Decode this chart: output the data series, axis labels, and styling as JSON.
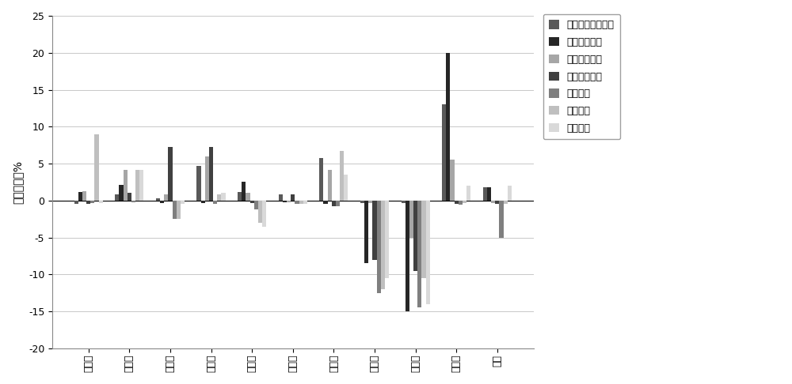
{
  "categories": [
    "玉州区",
    "福绵区",
    "兴业县",
    "北流市",
    "陆川县",
    "博白县",
    "合浦县",
    "浦北县",
    "灵山县",
    "钔南区",
    "流域"
  ],
  "series": [
    {
      "name": "城镇居民生活用水",
      "color": "#595959",
      "values": [
        -0.5,
        0.8,
        0.3,
        4.7,
        1.2,
        0.8,
        5.8,
        -0.3,
        -0.3,
        13.0,
        1.8
      ]
    },
    {
      "name": "城镇公共用水",
      "color": "#262626",
      "values": [
        1.2,
        2.1,
        -0.3,
        -0.3,
        2.5,
        -0.2,
        -0.5,
        -8.5,
        -15.0,
        20.0,
        1.8
      ]
    },
    {
      "name": "生态环境用水",
      "color": "#a6a6a6",
      "values": [
        1.3,
        4.2,
        0.8,
        6.0,
        1.1,
        -0.2,
        4.1,
        -0.3,
        -5.0,
        5.5,
        -0.3
      ]
    },
    {
      "name": "农村生活用水",
      "color": "#404040",
      "values": [
        -0.4,
        1.0,
        7.2,
        7.2,
        -0.3,
        0.8,
        -0.8,
        -8.0,
        -9.5,
        -0.4,
        -0.5
      ]
    },
    {
      "name": "工业用水",
      "color": "#7f7f7f",
      "values": [
        -0.3,
        -0.2,
        -2.5,
        -0.5,
        -1.2,
        -0.5,
        -0.8,
        -12.5,
        -14.5,
        -0.6,
        -5.0
      ]
    },
    {
      "name": "农业用水",
      "color": "#bfbfbf",
      "values": [
        9.0,
        4.2,
        -2.5,
        0.8,
        -3.0,
        -0.5,
        6.7,
        -12.0,
        -10.5,
        -0.3,
        -0.5
      ]
    },
    {
      "name": "分区合计",
      "color": "#d9d9d9",
      "values": [
        -0.3,
        4.2,
        -0.5,
        1.0,
        -3.5,
        -0.5,
        3.5,
        -10.5,
        -14.0,
        2.0,
        2.0
      ]
    }
  ],
  "ylabel": "误差百分率%",
  "ylim": [
    -20,
    25
  ],
  "yticks": [
    -20,
    -15,
    -10,
    -5,
    0,
    5,
    10,
    15,
    20,
    25
  ],
  "background_color": "#ffffff",
  "grid_color": "#c8c8c8"
}
